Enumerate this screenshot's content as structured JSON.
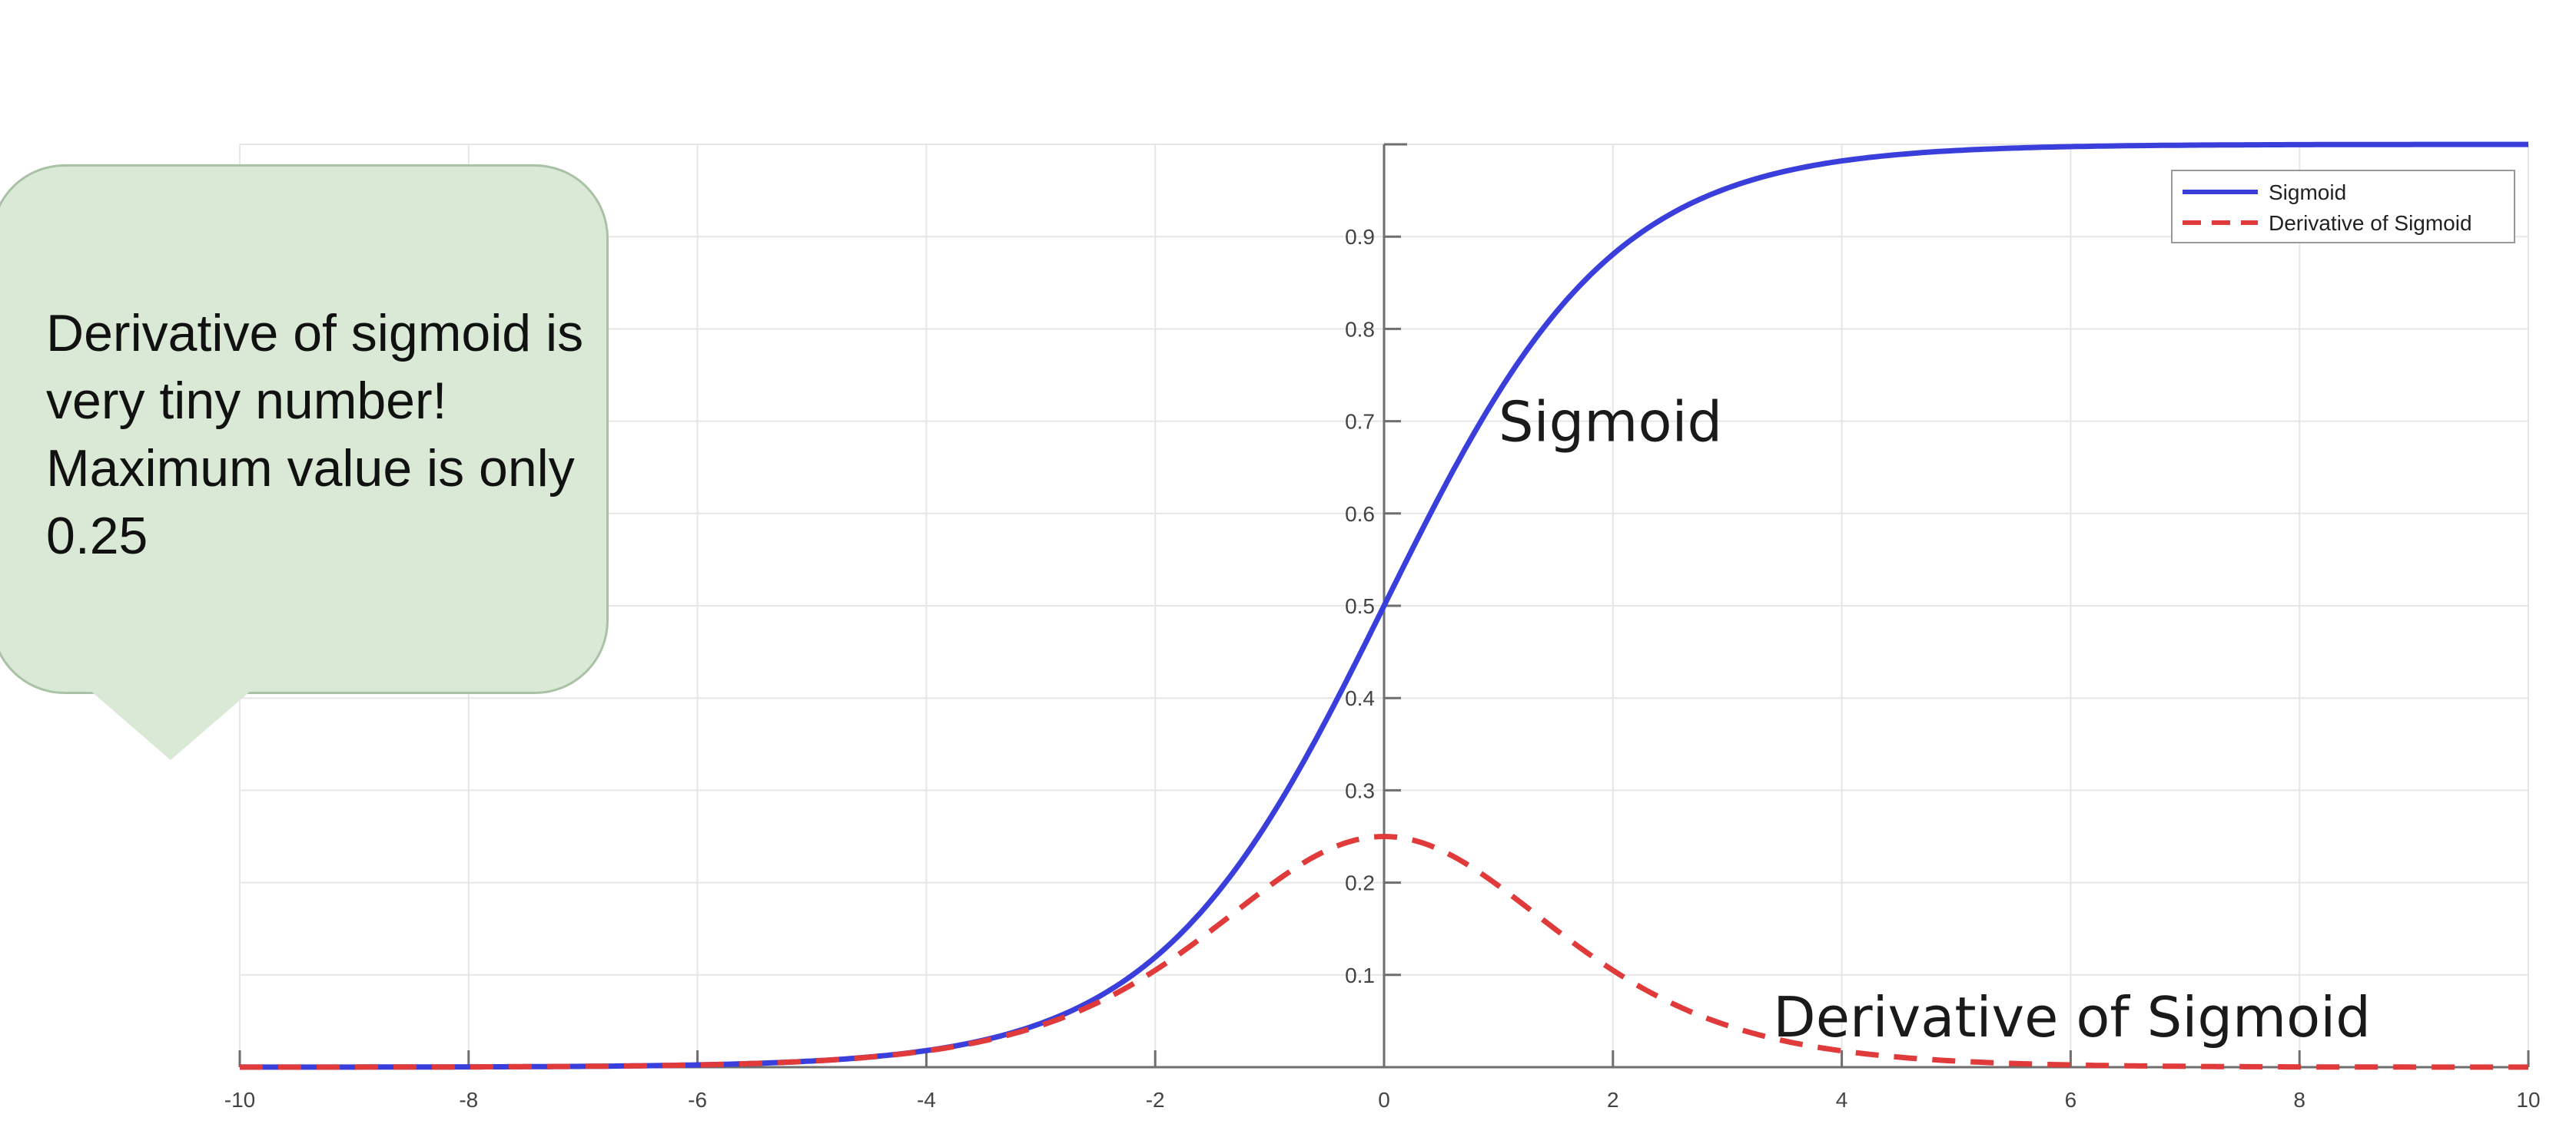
{
  "chart_data": {
    "type": "line",
    "title": "",
    "xlabel": "",
    "ylabel": "",
    "xlim": [
      -10,
      10
    ],
    "ylim": [
      0,
      1
    ],
    "x_ticks": [
      -10,
      -8,
      -6,
      -4,
      -2,
      0,
      2,
      4,
      6,
      8,
      10
    ],
    "y_ticks": [
      0.1,
      0.2,
      0.3,
      0.4,
      0.5,
      0.6,
      0.7,
      0.8,
      0.9
    ],
    "grid": true,
    "legend_position": "top-right",
    "x": [
      -10,
      -9,
      -8,
      -7,
      -6,
      -5,
      -4,
      -3.5,
      -3,
      -2.5,
      -2,
      -1.5,
      -1,
      -0.5,
      0,
      0.5,
      1,
      1.5,
      2,
      2.5,
      3,
      3.5,
      4,
      5,
      6,
      7,
      8,
      9,
      10
    ],
    "series": [
      {
        "name": "Sigmoid",
        "color": "#3a3fdc",
        "style": "solid",
        "values": [
          5e-05,
          0.00012,
          0.00034,
          0.00091,
          0.00247,
          0.0067,
          0.018,
          0.0293,
          0.0474,
          0.0759,
          0.1192,
          0.1824,
          0.2689,
          0.3775,
          0.5,
          0.6225,
          0.7311,
          0.8176,
          0.8808,
          0.9241,
          0.9526,
          0.9707,
          0.982,
          0.9933,
          0.9975,
          0.9991,
          0.9997,
          0.9999,
          1.0
        ]
      },
      {
        "name": "Derivative of Sigmoid",
        "color": "#e03a3a",
        "style": "dashed",
        "values": [
          5e-05,
          0.00012,
          0.00034,
          0.00091,
          0.00247,
          0.0066,
          0.0177,
          0.0285,
          0.0452,
          0.0701,
          0.105,
          0.1491,
          0.1966,
          0.235,
          0.25,
          0.235,
          0.1966,
          0.1491,
          0.105,
          0.0701,
          0.0452,
          0.0285,
          0.0177,
          0.0066,
          0.00247,
          0.00091,
          0.00034,
          0.00012,
          5e-05
        ]
      }
    ],
    "annotations": [
      {
        "text": "Sigmoid",
        "x": 1.0,
        "y": 0.7
      },
      {
        "text": "Derivative of Sigmoid",
        "x": 3.4,
        "y": 0.055
      }
    ]
  },
  "callout": {
    "text": "Derivative of sigmoid is very tiny number! Maximum value is only 0.25"
  }
}
